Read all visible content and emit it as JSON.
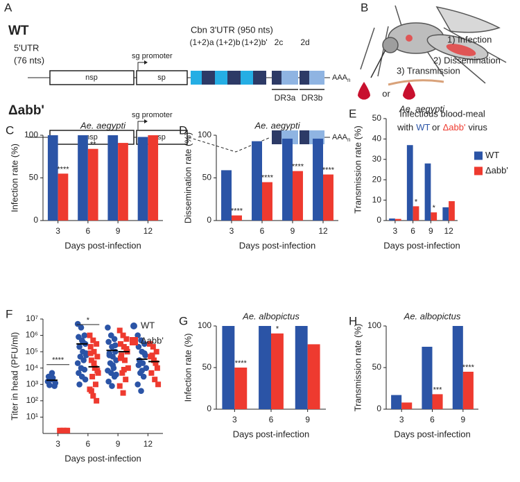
{
  "diagram": {
    "a": {
      "panel": "A",
      "wt": {
        "title": "WT",
        "utr5": "5'UTR",
        "utr5_length": "(76 nts)",
        "promoter": "sg promoter",
        "utr3": "Cbn 3'UTR (950 nts)",
        "nsp": "nsp",
        "sp": "sp",
        "elements": [
          "(1+2)a",
          "(1+2)b",
          "(1+2)b'",
          "2c",
          "2d"
        ],
        "repeats": [
          "DR3a",
          "DR3b"
        ],
        "polya": "AAA",
        "polya_sub": "n"
      },
      "mutant": {
        "title": "Δabb'",
        "promoter": "sg promoter",
        "nsp": "nsp",
        "sp": "sp",
        "polya": "AAA",
        "polya_sub": "n"
      }
    },
    "b": {
      "panel": "B",
      "steps": [
        "1) Infection",
        "2) Dissemination",
        "3) Transmission"
      ],
      "or": "or",
      "caption_line1": "Infectious blood-meal",
      "caption_with": "with",
      "caption_wt": "WT",
      "caption_or": "or",
      "caption_mutant": "Δabb'",
      "caption_virus": "virus"
    }
  },
  "chart_data": [
    {
      "panel": "C",
      "type": "bar",
      "title": "Ae. aegypti",
      "ylabel": "Infection rate (%)",
      "xlabel": "Days post-infection",
      "categories": [
        "3",
        "6",
        "9",
        "12"
      ],
      "series": [
        {
          "name": "WT",
          "color": "#2b54a6",
          "values": [
            100,
            100,
            100,
            98
          ]
        },
        {
          "name": "Δabb'",
          "color": "#ee3a2f",
          "values": [
            55,
            84,
            91,
            100
          ],
          "significance": [
            "****",
            "**",
            null,
            null
          ]
        }
      ],
      "ylim": [
        0,
        100
      ],
      "yticks": [
        0,
        50,
        100
      ]
    },
    {
      "panel": "D",
      "type": "bar",
      "title": "Ae. aegypti",
      "ylabel": "Dissemination rate (%)",
      "xlabel": "Days post-infection",
      "categories": [
        "3",
        "6",
        "9",
        "12"
      ],
      "series": [
        {
          "name": "WT",
          "color": "#2b54a6",
          "values": [
            59,
            93,
            96,
            96
          ]
        },
        {
          "name": "Δabb'",
          "color": "#ee3a2f",
          "values": [
            6,
            45,
            58,
            54
          ],
          "significance": [
            "****",
            "****",
            "****",
            "****"
          ]
        }
      ],
      "ylim": [
        0,
        100
      ],
      "yticks": [
        0,
        50,
        100
      ]
    },
    {
      "panel": "E",
      "type": "bar",
      "title": "Ae. aegypti",
      "ylabel": "Transmission rate (%)",
      "xlabel": "Days post-infection",
      "categories": [
        "3",
        "6",
        "9",
        "12"
      ],
      "series": [
        {
          "name": "WT",
          "color": "#2b54a6",
          "values": [
            1,
            37,
            28,
            6.5
          ]
        },
        {
          "name": "Δabb'",
          "color": "#ee3a2f",
          "values": [
            0.8,
            7,
            4,
            9.5
          ],
          "significance": [
            null,
            "*",
            "*",
            null
          ]
        }
      ],
      "ylim": [
        0,
        50
      ],
      "yticks": [
        0,
        10,
        20,
        30,
        40,
        50
      ],
      "legend": "right"
    },
    {
      "panel": "F",
      "type": "strip",
      "ylabel": "Titer in head (PFU/ml)",
      "xlabel": "Days post-infection",
      "categories": [
        "3",
        "6",
        "9",
        "12"
      ],
      "log": true,
      "series": [
        {
          "name": "WT",
          "color": "#2b54a6",
          "marker": "circle",
          "values": [
            [
              1500,
              2000,
              800,
              3000,
              5000,
              1200,
              900,
              2500
            ],
            [
              5000000,
              3000000,
              1000000,
              800000,
              500000,
              300000,
              200000,
              100000,
              80000,
              50000,
              30000,
              20000,
              10000,
              8000,
              5000,
              3000,
              2000,
              1000,
              400000,
              60000
            ],
            [
              3000000,
              1000000,
              600000,
              400000,
              200000,
              100000,
              80000,
              50000,
              30000,
              20000,
              10000,
              7000,
              5000,
              3000,
              1500,
              800,
              250000,
              60000,
              15000,
              4000
            ],
            [
              1000000,
              500000,
              300000,
              200000,
              100000,
              60000,
              30000,
              20000,
              10000,
              5000,
              3000,
              1000,
              400,
              80000,
              15000,
              7000
            ]
          ],
          "medians": [
            1800,
            300000,
            120000,
            35000
          ]
        },
        {
          "name": "Δabb'",
          "color": "#ee3a2f",
          "marker": "square",
          "values": [
            [
              1.5,
              1.5,
              1.5,
              1.5,
              1.5,
              1.5
            ],
            [
              1000000,
              500000,
              300000,
              200000,
              100000,
              50000,
              30000,
              10000,
              5000,
              3000,
              1000,
              500,
              200,
              100,
              80000,
              20000,
              7000,
              400
            ],
            [
              2000000,
              1000000,
              600000,
              300000,
              200000,
              100000,
              60000,
              30000,
              10000,
              5000,
              2000,
              800,
              300,
              150000,
              40000,
              8000
            ],
            [
              300000,
              200000,
              100000,
              50000,
              30000,
              10000,
              5000,
              2000,
              1000,
              60000,
              20000
            ]
          ],
          "medians": [
            null,
            12000,
            100000,
            25000
          ]
        }
      ],
      "significance": [
        "****",
        "*",
        null,
        null
      ],
      "ylim": [
        1,
        10000000
      ],
      "yticks": [
        {
          "value": 10,
          "label": "10¹"
        },
        {
          "value": 100,
          "label": "10²"
        },
        {
          "value": 1000,
          "label": "10³"
        },
        {
          "value": 10000,
          "label": "10⁴"
        },
        {
          "value": 100000,
          "label": "10⁵"
        },
        {
          "value": 1000000,
          "label": "10⁶"
        },
        {
          "value": 10000000,
          "label": "10⁷"
        }
      ],
      "legend": "upper right"
    },
    {
      "panel": "G",
      "type": "bar",
      "title": "Ae. albopictus",
      "ylabel": "Infection rate (%)",
      "xlabel": "Days post-infection",
      "categories": [
        "3",
        "6",
        "9"
      ],
      "series": [
        {
          "name": "WT",
          "color": "#2b54a6",
          "values": [
            100,
            100,
            100
          ]
        },
        {
          "name": "Δabb'",
          "color": "#ee3a2f",
          "values": [
            50,
            91,
            78
          ],
          "significance": [
            "****",
            "*",
            null
          ]
        }
      ],
      "ylim": [
        0,
        100
      ],
      "yticks": [
        0,
        50,
        100
      ]
    },
    {
      "panel": "H",
      "type": "bar",
      "title": "Ae. albopictus",
      "ylabel": "Transmission rate (%)",
      "xlabel": "Days post-infection",
      "categories": [
        "3",
        "6",
        "9"
      ],
      "series": [
        {
          "name": "WT",
          "color": "#2b54a6",
          "values": [
            17,
            75,
            100
          ]
        },
        {
          "name": "Δabb'",
          "color": "#ee3a2f",
          "values": [
            8,
            18,
            45
          ],
          "significance": [
            null,
            "***",
            "****"
          ]
        }
      ],
      "ylim": [
        0,
        100
      ],
      "yticks": [
        0,
        50,
        100
      ]
    }
  ]
}
